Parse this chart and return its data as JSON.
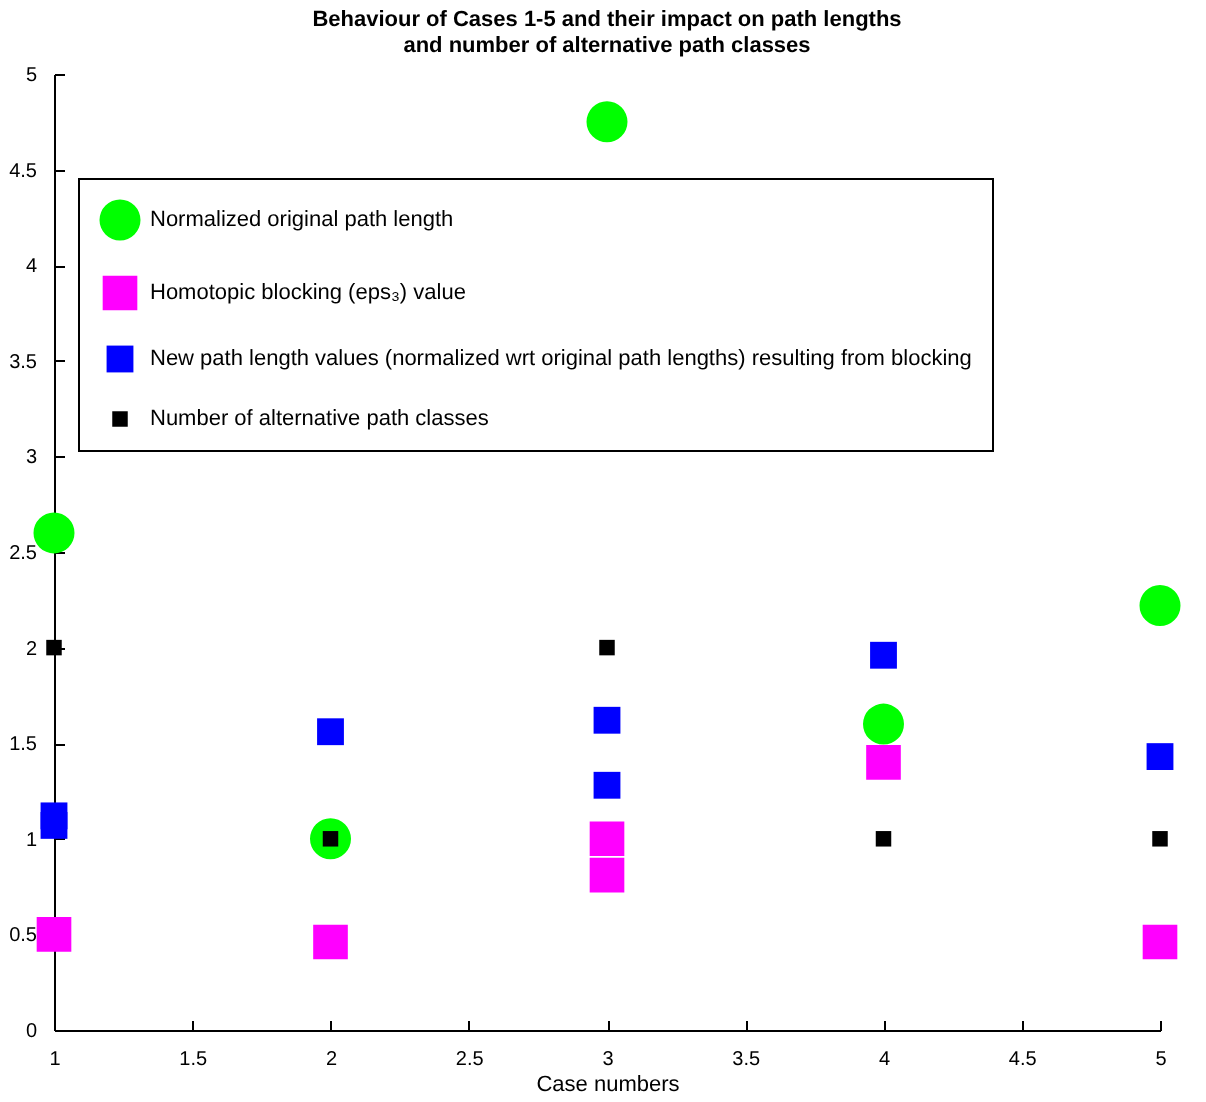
{
  "chart_data": {
    "type": "scatter",
    "title": "Behaviour of Cases 1-5 and their impact on path lengths\nand number of alternative path classes",
    "xlabel": "Case numbers",
    "xlim": [
      1,
      5
    ],
    "xticks": [
      1,
      1.5,
      2,
      2.5,
      3,
      3.5,
      4,
      4.5,
      5
    ],
    "ylim": [
      0,
      5
    ],
    "yticks": [
      0,
      0.5,
      1,
      1.5,
      2,
      2.5,
      3,
      3.5,
      4,
      4.5,
      5
    ],
    "grid": false,
    "legend": "top",
    "series": [
      {
        "name": "Normalized original path length",
        "color": "#00ff00",
        "marker": "circle",
        "x": [
          1,
          2,
          3,
          4,
          5
        ],
        "values": [
          2.6,
          1.0,
          4.75,
          1.6,
          2.22
        ]
      },
      {
        "name": "Homotopic blocking (eps₃) value",
        "color": "#ff00ff",
        "marker": "square",
        "x": [
          1,
          2,
          3,
          3,
          4,
          5
        ],
        "values": [
          0.5,
          0.46,
          1.0,
          0.81,
          1.4,
          0.46
        ]
      },
      {
        "name": "New path length values (normalized wrt original path lengths) resulting from blocking",
        "color": "#0000ff",
        "marker": "square",
        "x": [
          1,
          1,
          2,
          3,
          3,
          4,
          5
        ],
        "values": [
          1.12,
          1.07,
          1.56,
          1.62,
          1.28,
          1.96,
          1.43
        ]
      },
      {
        "name": "Number of alternative path classes",
        "color": "#000000",
        "marker": "square",
        "x": [
          1,
          2,
          3,
          4,
          5
        ],
        "values": [
          2,
          1,
          2,
          1,
          1
        ]
      }
    ]
  }
}
